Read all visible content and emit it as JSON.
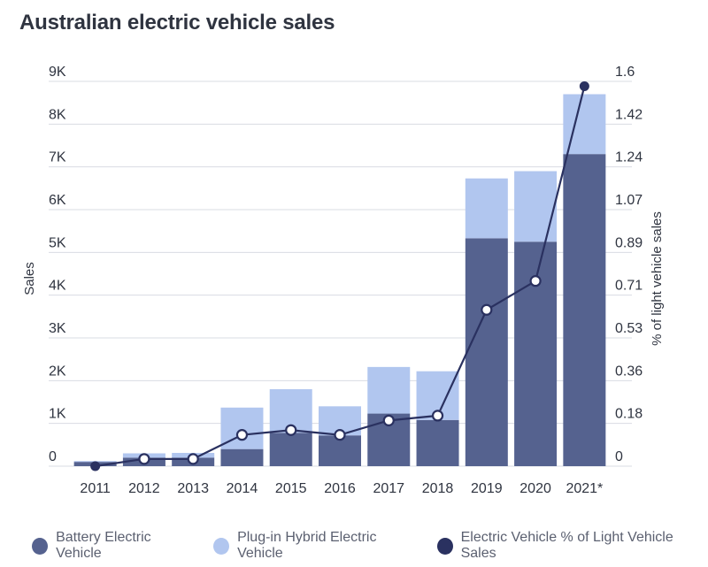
{
  "title": "Australian electric vehicle sales",
  "colors": {
    "bev": "#55628f",
    "phev": "#b1c6ef",
    "pct_line": "#2a3160",
    "grid": "#d9dce3",
    "text": "#2f3440"
  },
  "chart_data": {
    "type": "bar",
    "stacked": true,
    "categories": [
      "2011",
      "2012",
      "2013",
      "2014",
      "2015",
      "2016",
      "2017",
      "2018",
      "2019",
      "2020",
      "2021*"
    ],
    "series": [
      {
        "name": "Battery Electric Vehicle",
        "values": [
          100,
          200,
          200,
          400,
          780,
          720,
          1230,
          1080,
          5330,
          5250,
          7300
        ]
      },
      {
        "name": "Plug-in Hybrid Electric Vehicle",
        "values": [
          20,
          100,
          110,
          970,
          1020,
          680,
          1090,
          1140,
          1400,
          1650,
          1400
        ]
      }
    ],
    "line_series": {
      "name": "Electric Vehicle % of Light Vehicle Sales",
      "axis": "right",
      "values": [
        0.0,
        0.03,
        0.03,
        0.13,
        0.15,
        0.13,
        0.19,
        0.21,
        0.65,
        0.77,
        1.58
      ]
    },
    "ylabel": "Sales",
    "ylabel_right": "% of light vehicle sales",
    "ylim": [
      0,
      9000
    ],
    "ylim_right": [
      0,
      1.6
    ],
    "yticks": [
      "0",
      "1K",
      "2K",
      "3K",
      "4K",
      "5K",
      "6K",
      "7K",
      "8K",
      "9K"
    ],
    "yticks_right": [
      "0",
      "0.18",
      "0.36",
      "0.53",
      "0.71",
      "0.89",
      "1.07",
      "1.24",
      "1.42",
      "1.6"
    ],
    "grid": true,
    "legend_position": "bottom"
  },
  "legend": [
    {
      "label": "Battery Electric Vehicle",
      "color": "#55628f"
    },
    {
      "label": "Plug-in Hybrid Electric Vehicle",
      "color": "#b1c6ef"
    },
    {
      "label": "Electric Vehicle % of Light Vehicle Sales",
      "color": "#2a3160"
    }
  ]
}
